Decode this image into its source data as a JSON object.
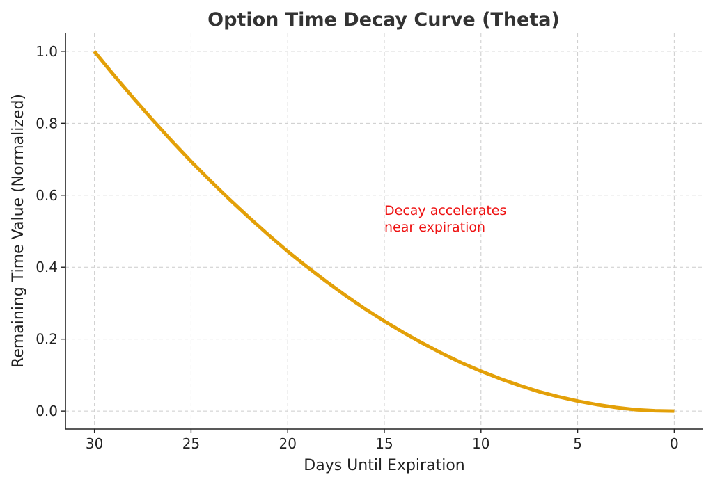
{
  "chart_data": {
    "type": "line",
    "title": "Option Time Decay Curve (Theta)",
    "xlabel": "Days Until Expiration",
    "ylabel": "Remaining Time Value (Normalized)",
    "x_inverted": true,
    "xlim": [
      31.5,
      -1.5
    ],
    "ylim": [
      -0.05,
      1.05
    ],
    "xticks": [
      30,
      25,
      20,
      15,
      10,
      5,
      0
    ],
    "yticks": [
      0.0,
      0.2,
      0.4,
      0.6,
      0.8,
      1.0
    ],
    "ytick_labels": [
      "0.0",
      "0.2",
      "0.4",
      "0.6",
      "0.8",
      "1.0"
    ],
    "grid": true,
    "series": [
      {
        "color": "#E3A008",
        "x": [
          30,
          29,
          28,
          27,
          26,
          25,
          24,
          23,
          22,
          21,
          20,
          19,
          18,
          17,
          16,
          15,
          14,
          13,
          12,
          11,
          10,
          9,
          8,
          7,
          6,
          5,
          4,
          3,
          2,
          1,
          0
        ],
        "y": [
          1.0,
          0.934,
          0.871,
          0.81,
          0.751,
          0.694,
          0.64,
          0.588,
          0.538,
          0.49,
          0.444,
          0.401,
          0.36,
          0.321,
          0.284,
          0.25,
          0.218,
          0.188,
          0.16,
          0.134,
          0.111,
          0.09,
          0.071,
          0.054,
          0.04,
          0.028,
          0.018,
          0.01,
          0.004,
          0.001,
          0.0
        ]
      }
    ],
    "annotation": {
      "text_line1": "Decay accelerates",
      "text_line2": "near expiration",
      "x": 15,
      "y": 0.55,
      "color": "#ee1111"
    }
  }
}
